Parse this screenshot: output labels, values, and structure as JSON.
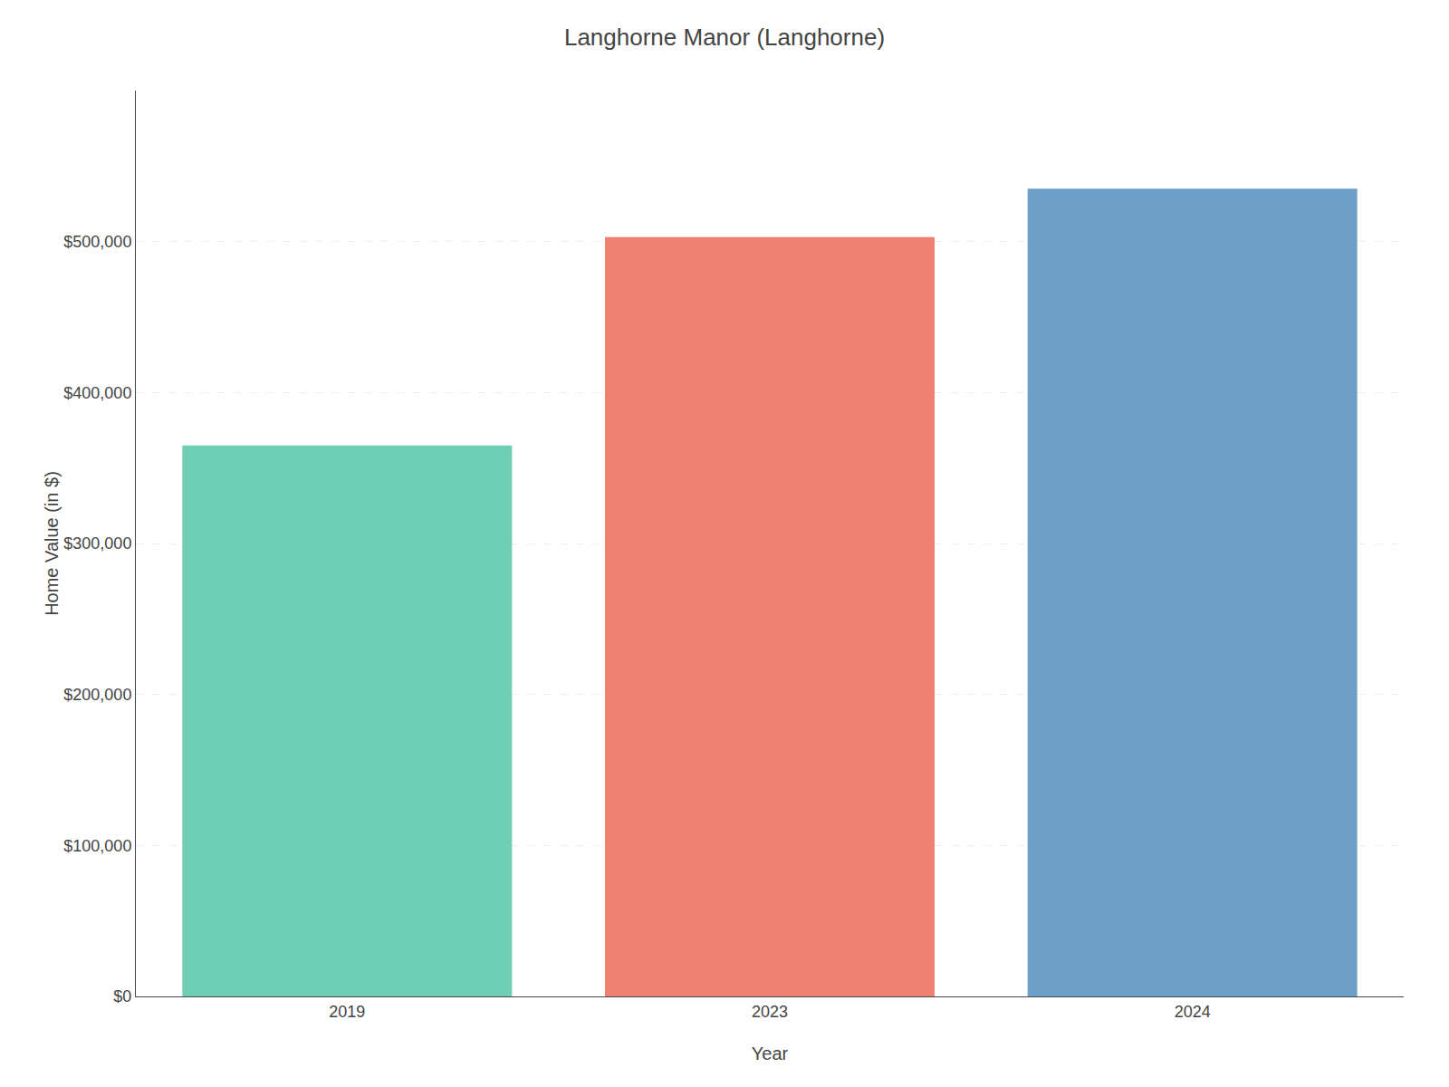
{
  "chart_data": {
    "type": "bar",
    "title": "Langhorne Manor (Langhorne)",
    "categories": [
      "2019",
      "2023",
      "2024"
    ],
    "values": [
      365000,
      503000,
      535000
    ],
    "colors": [
      "#6ecfb4",
      "#f08070",
      "#6ca0c8"
    ],
    "xlabel": "Year",
    "ylabel": "Home Value (in $)",
    "ylim": [
      0,
      600000
    ],
    "yticks": [
      {
        "value": 0,
        "label": "$0"
      },
      {
        "value": 100000,
        "label": "$100,000"
      },
      {
        "value": 200000,
        "label": "$200,000"
      },
      {
        "value": 300000,
        "label": "$300,000"
      },
      {
        "value": 400000,
        "label": "$400,000"
      },
      {
        "value": 500000,
        "label": "$500,000"
      }
    ],
    "grid": true
  }
}
